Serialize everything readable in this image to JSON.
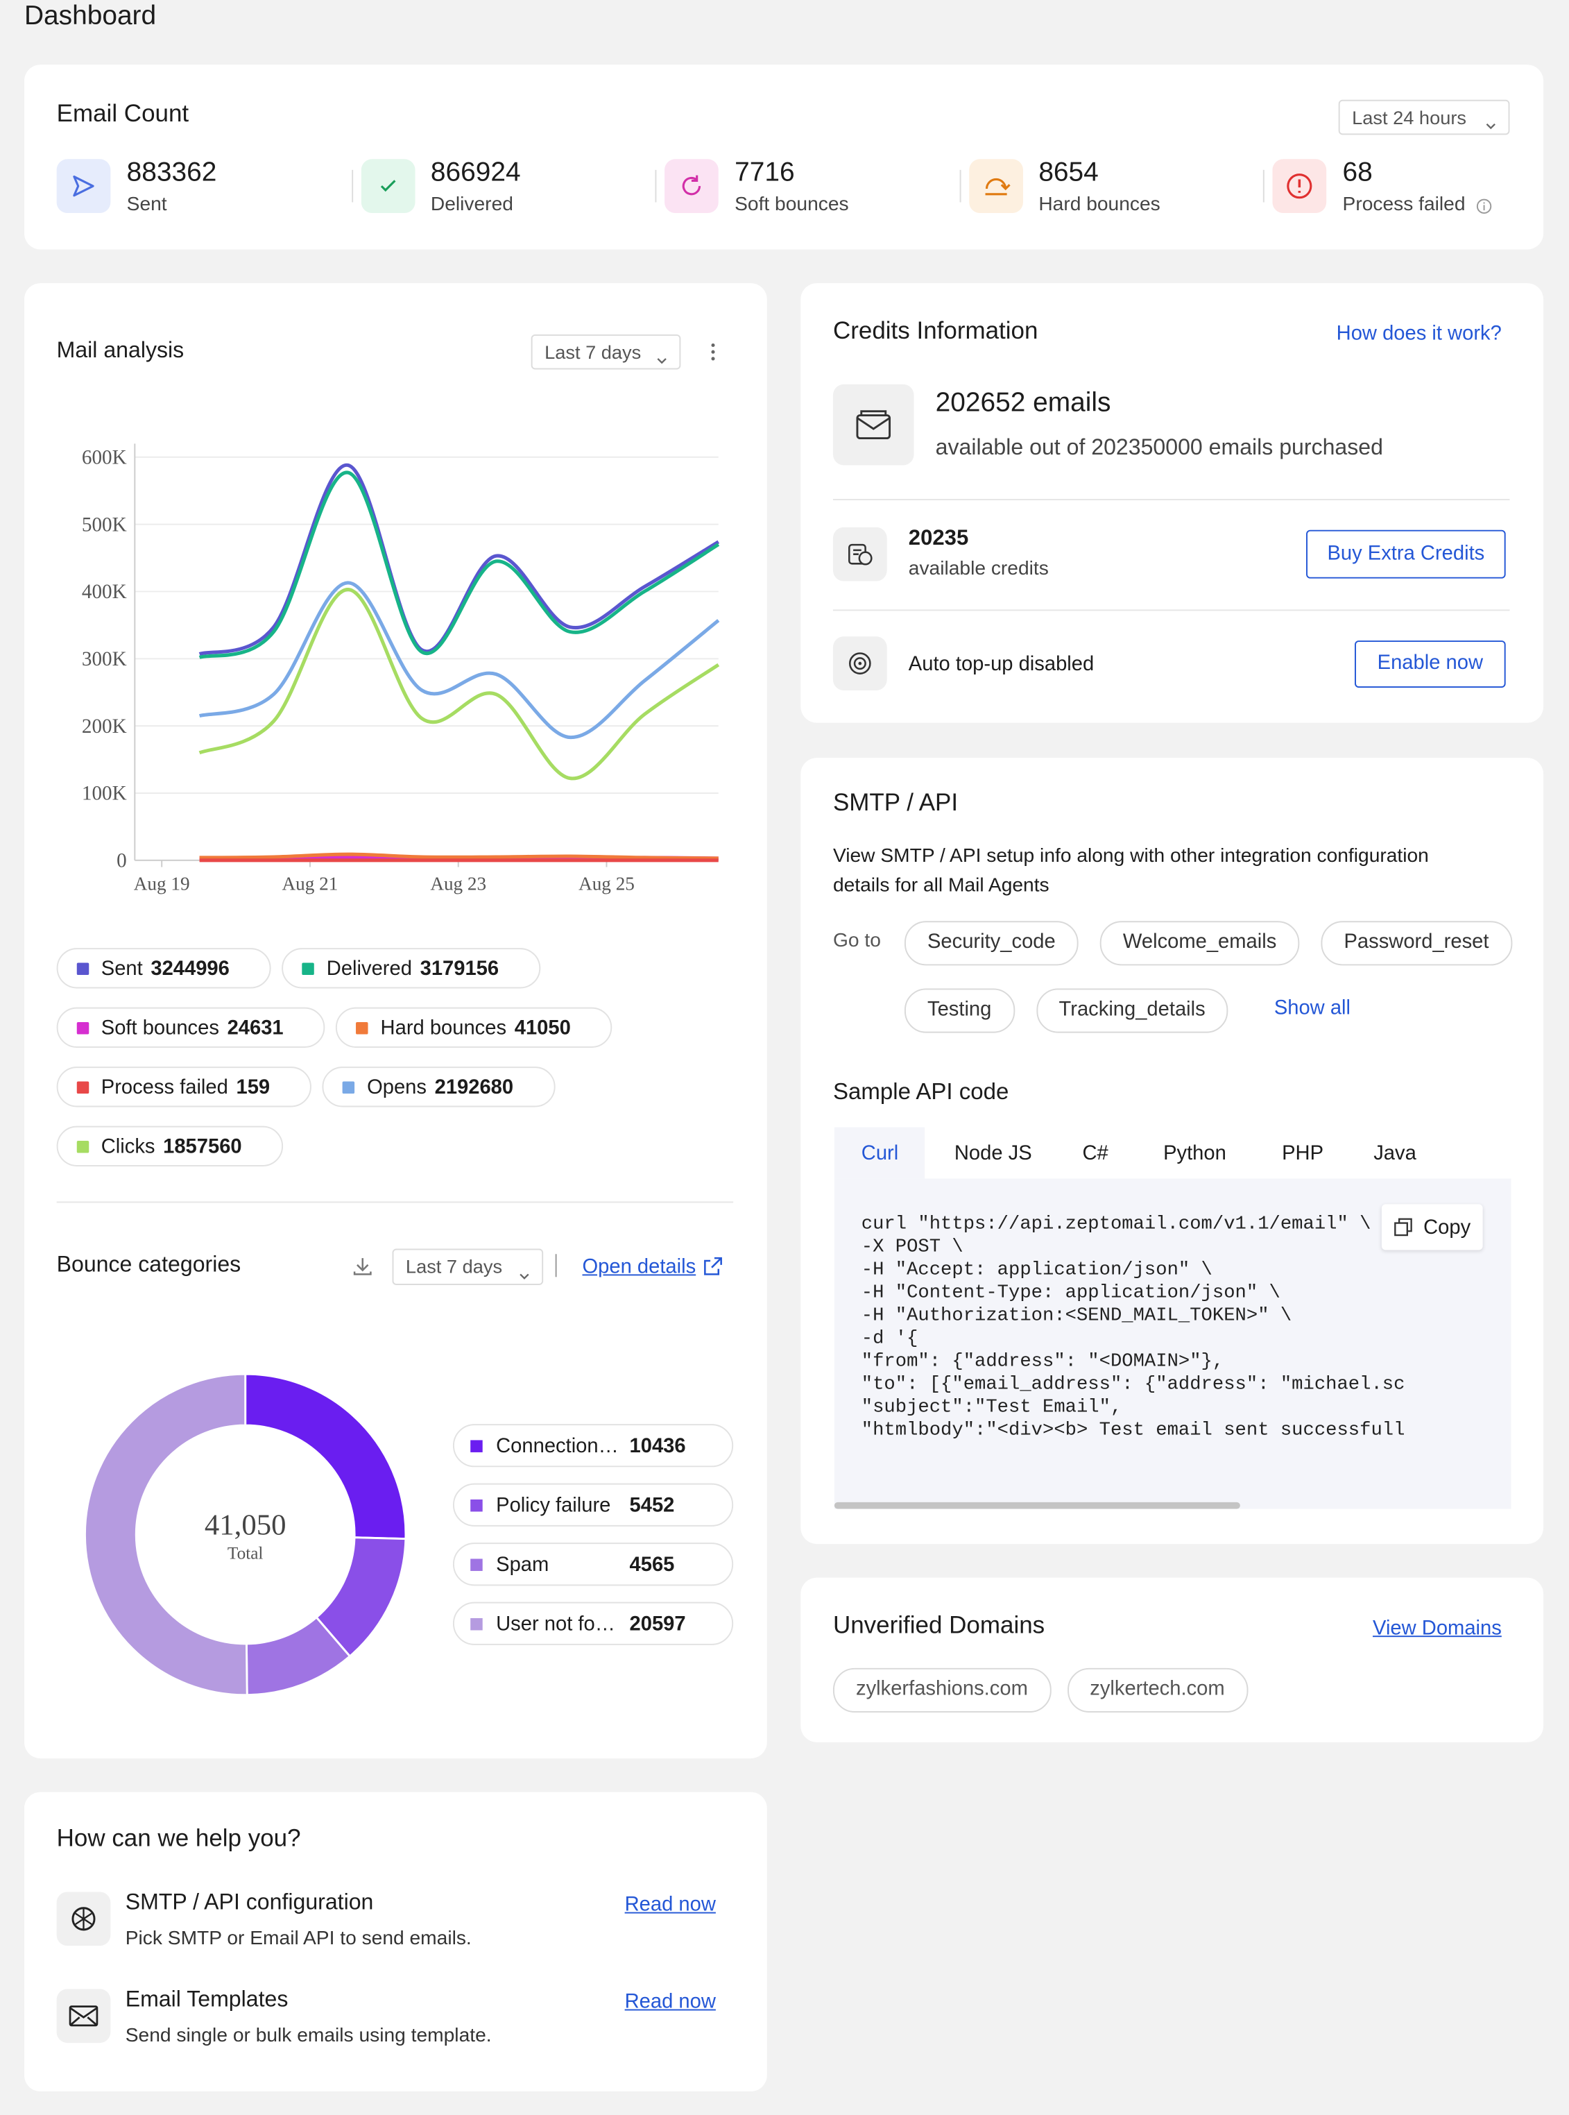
{
  "header": {
    "title": "Dashboard"
  },
  "email_count": {
    "title": "Email Count",
    "period": "Last 24 hours",
    "stats": [
      {
        "value": 883362,
        "label": "Sent"
      },
      {
        "value": 866924,
        "label": "Delivered"
      },
      {
        "value": 7716,
        "label": "Soft bounces"
      },
      {
        "value": 8654,
        "label": "Hard bounces"
      },
      {
        "value": 68,
        "label": "Process failed"
      }
    ]
  },
  "mail_analysis": {
    "title": "Mail analysis",
    "period": "Last 7 days",
    "chart": {
      "type": "line",
      "categories": [
        "Aug 19",
        null,
        "Aug 21",
        null,
        "Aug 23",
        null,
        "Aug 25",
        null
      ],
      "ylim": [
        0,
        600000
      ],
      "yticks": [
        0,
        {
          "value": 100000,
          "label": "100K"
        },
        {
          "value": 200000,
          "label": "200K"
        },
        {
          "value": 300000,
          "label": "300K"
        },
        {
          "value": 400000,
          "label": "400K"
        },
        {
          "value": 500000,
          "label": "500K"
        },
        {
          "value": 600000,
          "label": "600K"
        }
      ],
      "grid": true,
      "series": [
        {
          "name": "Sent",
          "color": "#5a56cf",
          "values": [
            307000,
            347000,
            588000,
            313000,
            453000,
            347000,
            407000,
            474000
          ]
        },
        {
          "name": "Delivered",
          "color": "#17b488",
          "values": [
            302000,
            340000,
            577000,
            310000,
            445000,
            340000,
            400000,
            470000
          ]
        },
        {
          "name": "Soft bounces",
          "color": "#d62fd0",
          "values": [
            3000,
            3000,
            5000,
            3000,
            3000,
            3000,
            4000,
            3000
          ]
        },
        {
          "name": "Hard bounces",
          "color": "#f07a3a",
          "values": [
            4000,
            5000,
            9000,
            5000,
            5000,
            6000,
            4000,
            3000
          ]
        },
        {
          "name": "Process failed",
          "color": "#e84848",
          "values": [
            0,
            0,
            0,
            0,
            0,
            0,
            0,
            0
          ]
        },
        {
          "name": "Opens",
          "color": "#7aa9e6",
          "values": [
            215000,
            247000,
            413000,
            253000,
            277000,
            183000,
            267000,
            357000
          ]
        },
        {
          "name": "Clicks",
          "color": "#a6dc62",
          "values": [
            160000,
            207000,
            403000,
            211000,
            247000,
            122000,
            217000,
            291000
          ]
        }
      ]
    },
    "totals": [
      3244996,
      3179156,
      24631,
      41050,
      159,
      2192680,
      1857560
    ]
  },
  "bounce_categories": {
    "title": "Bounce categories",
    "period": "Last 7 days",
    "link": "Open details",
    "chart": {
      "type": "pie",
      "categories": [
        "Connection…",
        "Policy failure",
        "Spam",
        "User not fo…"
      ],
      "values": [
        10436,
        5452,
        4565,
        20597
      ],
      "colors": [
        "#6a1ef0",
        "#8a4fe8",
        "#9f74e3",
        "#b59be0"
      ],
      "total": {
        "value": 41050,
        "label": "41,050"
      },
      "total_label": "Total"
    }
  },
  "credits": {
    "title": "Credits Information",
    "link": "How does it work?",
    "emails": "202652 emails",
    "emails_note": "available out of 202350000 emails purchased",
    "credits": 20235,
    "credits_label": "available credits",
    "buy_button": "Buy Extra Credits",
    "auto_topup": "Auto top-up disabled",
    "enable_button": "Enable now"
  },
  "smtp": {
    "title": "SMTP / API",
    "description": "View SMTP / API setup info along with other integration configuration details for all Mail Agents",
    "goto_label": "Go to",
    "agents": [
      "Security_code",
      "Welcome_emails",
      "Password_reset",
      "Testing",
      "Tracking_details"
    ],
    "show_all": "Show all",
    "sample_title": "Sample API code",
    "tabs": [
      "Curl",
      "Node JS",
      "C#",
      "Python",
      "PHP",
      "Java"
    ],
    "code": [
      "curl \"https://api.zeptomail.com/v1.1/email\" \\",
      "        -X POST \\",
      "        -H \"Accept: application/json\" \\",
      "        -H \"Content-Type: application/json\" \\",
      "        -H \"Authorization:<SEND_MAIL_TOKEN>\" \\",
      "        -d '{",
      "        \"from\": {\"address\": \"<DOMAIN>\"},",
      "        \"to\": [{\"email_address\": {\"address\": \"michael.sc",
      "        \"subject\":\"Test Email\",",
      "        \"htmlbody\":\"<div><b> Test email sent successfull"
    ],
    "copy": "Copy"
  },
  "unverified": {
    "title": "Unverified Domains",
    "link": "View Domains",
    "domains": [
      "zylkerfashions.com",
      "zylkertech.com"
    ]
  },
  "help": {
    "title": "How can we help you?",
    "items": [
      {
        "title": "SMTP / API configuration",
        "description": "Pick SMTP or Email API to send emails.",
        "link": "Read now"
      },
      {
        "title": "Email Templates",
        "description": "Send single or bulk emails using template.",
        "link": "Read now"
      }
    ]
  }
}
